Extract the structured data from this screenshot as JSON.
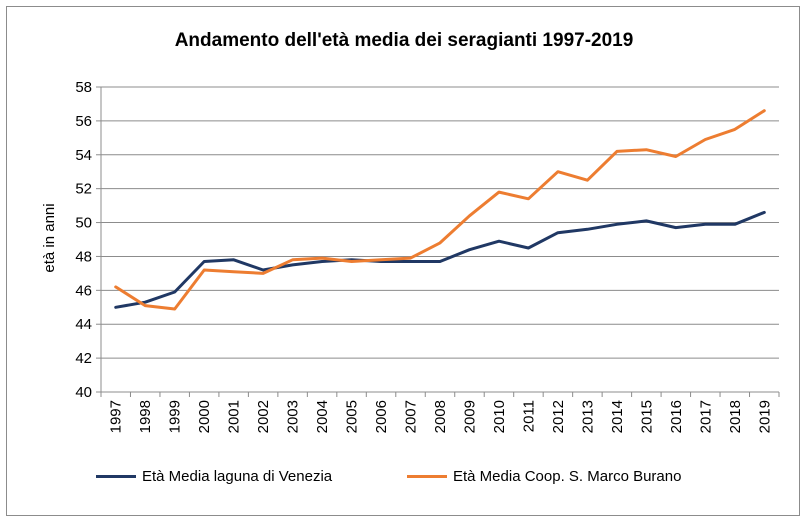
{
  "chart_data": {
    "type": "line",
    "title": "Andamento dell'età media dei seragianti 1997-2019",
    "ylabel": "età in anni",
    "xlabel": "",
    "ylim": [
      40,
      58
    ],
    "yticks": [
      40,
      42,
      44,
      46,
      48,
      50,
      52,
      54,
      56,
      58
    ],
    "categories": [
      "1997",
      "1998",
      "1999",
      "2000",
      "2001",
      "2002",
      "2003",
      "2004",
      "2005",
      "2006",
      "2007",
      "2008",
      "2009",
      "2010",
      "2011",
      "2012",
      "2013",
      "2014",
      "2015",
      "2016",
      "2017",
      "2018",
      "2019"
    ],
    "grid": "horizontal",
    "legend_position": "bottom",
    "series": [
      {
        "name": "Età Media laguna di Venezia",
        "color": "#203864",
        "values": [
          45.0,
          45.3,
          45.9,
          47.7,
          47.8,
          47.2,
          47.5,
          47.7,
          47.8,
          47.7,
          47.7,
          47.7,
          48.4,
          48.9,
          48.5,
          49.4,
          49.6,
          49.9,
          50.1,
          49.7,
          49.9,
          49.9,
          50.6
        ]
      },
      {
        "name": "Età Media Coop. S. Marco Burano",
        "color": "#ed7d31",
        "values": [
          46.2,
          45.1,
          44.9,
          47.2,
          47.1,
          47.0,
          47.8,
          47.9,
          47.7,
          47.8,
          47.9,
          48.8,
          50.4,
          51.8,
          51.4,
          53.0,
          52.5,
          54.2,
          54.3,
          53.9,
          54.9,
          55.5,
          56.6
        ]
      }
    ]
  }
}
